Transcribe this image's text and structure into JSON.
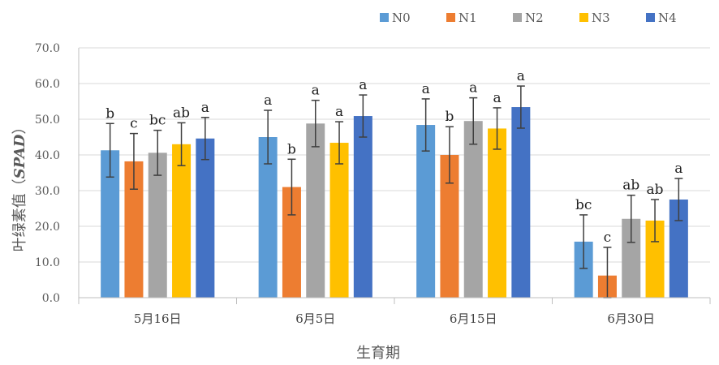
{
  "chart_data": {
    "type": "bar",
    "title": "",
    "xlabel": "生育期",
    "ylabel_main": "叶绿素值（",
    "ylabel_italic": "SPAD",
    "ylabel_tail": "）",
    "ylim": [
      0,
      70
    ],
    "y_ticks": [
      "0.0",
      "10.0",
      "20.0",
      "30.0",
      "40.0",
      "50.0",
      "60.0",
      "70.0"
    ],
    "categories": [
      "5月16日",
      "6月5日",
      "6月15日",
      "6月30日"
    ],
    "legend_position": "top",
    "grid": true,
    "series": [
      {
        "name": "N0",
        "color": "#5B9BD5",
        "values": [
          41.3,
          45.0,
          48.4,
          15.7
        ],
        "errors": [
          7.5,
          7.5,
          7.3,
          7.5
        ],
        "labels": [
          "b",
          "a",
          "a",
          "bc"
        ]
      },
      {
        "name": "N1",
        "color": "#ED7D31",
        "values": [
          38.2,
          31.0,
          40.0,
          6.2
        ],
        "errors": [
          7.8,
          7.8,
          7.9,
          7.9
        ],
        "labels": [
          "c",
          "b",
          "b",
          "c"
        ]
      },
      {
        "name": "N2",
        "color": "#A5A5A5",
        "values": [
          40.6,
          48.8,
          49.5,
          22.1
        ],
        "errors": [
          6.3,
          6.5,
          6.5,
          6.6
        ],
        "labels": [
          "bc",
          "a",
          "a",
          "ab"
        ]
      },
      {
        "name": "N3",
        "color": "#FFC000",
        "values": [
          43.0,
          43.4,
          47.4,
          21.6
        ],
        "errors": [
          6.0,
          5.9,
          5.8,
          5.9
        ],
        "labels": [
          "ab",
          "a",
          "a",
          "ab"
        ]
      },
      {
        "name": "N4",
        "color": "#4472C4",
        "values": [
          44.6,
          50.9,
          53.4,
          27.5
        ],
        "errors": [
          5.9,
          5.9,
          5.9,
          5.9
        ],
        "labels": [
          "a",
          "a",
          "a",
          "a"
        ]
      }
    ]
  }
}
